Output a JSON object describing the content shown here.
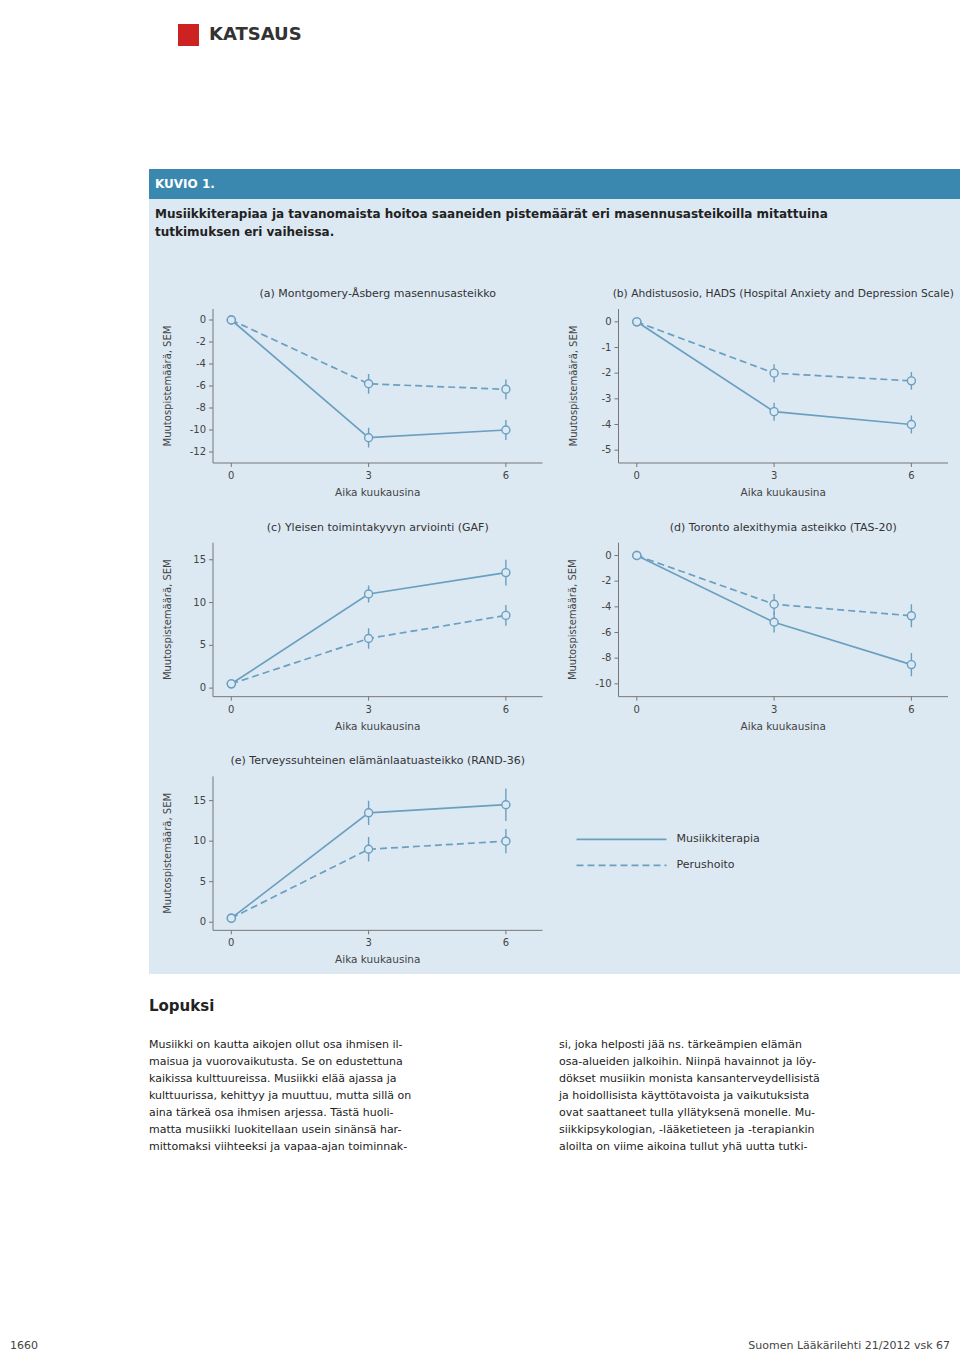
{
  "header": "KATSAUS",
  "title_box": "KUVIO 1.",
  "subtitle": "Musiikkiterapiaa ja tavanomaista hoitoa saaneiden pistemäärät eri masennusasteikoilla mitattuina\ntutkimuksen eri vaiheissa.",
  "chart_data": [
    {
      "type": "line",
      "title": "(a) Montgomery-Åsberg masennusasteikko",
      "x_label": "Aika kuukausina",
      "y_label": "Muutospistemäärä, SEM",
      "x": [
        0,
        3,
        6
      ],
      "xlim": [
        -0.4,
        6.8
      ],
      "xticks": [
        0,
        3,
        6
      ],
      "ylim": [
        -13,
        1
      ],
      "yticks": [
        0,
        -2,
        -4,
        -6,
        -8,
        -10,
        -12
      ],
      "grid": false,
      "series": [
        {
          "name": "Musiikkiterapia",
          "color": "#6a9fc0",
          "line_style": "solid",
          "marker": "circle",
          "values": [
            0,
            -10.7,
            -10.0
          ],
          "errors": [
            0.0,
            0.9,
            0.9
          ]
        },
        {
          "name": "Perushoito",
          "color": "#6a9fc0",
          "line_style": "dashed",
          "marker": "circle",
          "values": [
            0,
            -5.8,
            -6.3
          ],
          "errors": [
            0.0,
            0.9,
            0.9
          ]
        }
      ]
    },
    {
      "type": "line",
      "title": "(b) Ahdistusosio, HADS (Hospital Anxiety and Depression Scale)",
      "x_label": "Aika kuukausina",
      "y_label": "Muutospistemäärä, SEM",
      "x": [
        0,
        3,
        6
      ],
      "xlim": [
        -0.4,
        6.8
      ],
      "xticks": [
        0,
        3,
        6
      ],
      "ylim": [
        -5.5,
        0.5
      ],
      "yticks": [
        0,
        -1,
        -2,
        -3,
        -4,
        -5
      ],
      "grid": false,
      "series": [
        {
          "name": "Musiikkiterapia",
          "color": "#6a9fc0",
          "line_style": "solid",
          "marker": "circle",
          "values": [
            0,
            -3.5,
            -4.0
          ],
          "errors": [
            0.0,
            0.35,
            0.35
          ]
        },
        {
          "name": "Perushoito",
          "color": "#6a9fc0",
          "line_style": "dashed",
          "marker": "circle",
          "values": [
            0,
            -2.0,
            -2.3
          ],
          "errors": [
            0.0,
            0.35,
            0.35
          ]
        }
      ]
    },
    {
      "type": "line",
      "title": "(c) Yleisen toimintakyvyn arviointi (GAF)",
      "x_label": "Aika kuukausina",
      "y_label": "Muutospistemäärä, SEM",
      "x": [
        0,
        3,
        6
      ],
      "xlim": [
        -0.4,
        6.8
      ],
      "xticks": [
        0,
        3,
        6
      ],
      "ylim": [
        -1,
        17
      ],
      "yticks": [
        0,
        5,
        10,
        15
      ],
      "grid": false,
      "series": [
        {
          "name": "Musiikkiterapia",
          "color": "#6a9fc0",
          "line_style": "solid",
          "marker": "circle",
          "values": [
            0.5,
            11.0,
            13.5
          ],
          "errors": [
            0.0,
            1.0,
            1.5
          ]
        },
        {
          "name": "Perushoito",
          "color": "#6a9fc0",
          "line_style": "dashed",
          "marker": "circle",
          "values": [
            0.5,
            5.8,
            8.5
          ],
          "errors": [
            0.0,
            1.2,
            1.2
          ]
        }
      ]
    },
    {
      "type": "line",
      "title": "(d) Toronto alexithymia asteikko (TAS-20)",
      "x_label": "Aika kuukausina",
      "y_label": "Muutospistemäärä, SEM",
      "x": [
        0,
        3,
        6
      ],
      "xlim": [
        -0.4,
        6.8
      ],
      "xticks": [
        0,
        3,
        6
      ],
      "ylim": [
        -11,
        1
      ],
      "yticks": [
        0,
        -2,
        -4,
        -6,
        -8,
        -10
      ],
      "grid": false,
      "series": [
        {
          "name": "Musiikkiterapia",
          "color": "#6a9fc0",
          "line_style": "solid",
          "marker": "circle",
          "values": [
            0,
            -5.2,
            -8.5
          ],
          "errors": [
            0.0,
            0.8,
            0.9
          ]
        },
        {
          "name": "Perushoito",
          "color": "#6a9fc0",
          "line_style": "dashed",
          "marker": "circle",
          "values": [
            0,
            -3.8,
            -4.7
          ],
          "errors": [
            0.0,
            0.8,
            0.9
          ]
        }
      ]
    },
    {
      "type": "line",
      "title": "(e) Terveyssuhteinen elämänlaatuasteikko (RAND-36)",
      "x_label": "Aika kuukausina",
      "y_label": "Muutospistemäärä, SEM",
      "x": [
        0,
        3,
        6
      ],
      "xlim": [
        -0.4,
        6.8
      ],
      "xticks": [
        0,
        3,
        6
      ],
      "ylim": [
        -1,
        18
      ],
      "yticks": [
        0,
        5,
        10,
        15
      ],
      "grid": false,
      "legend": "right",
      "series": [
        {
          "name": "Musiikkiterapia",
          "color": "#6a9fc0",
          "line_style": "solid",
          "marker": "circle",
          "values": [
            0.5,
            13.5,
            14.5
          ],
          "errors": [
            0.0,
            1.5,
            2.0
          ]
        },
        {
          "name": "Perushoito",
          "color": "#6a9fc0",
          "line_style": "dashed",
          "marker": "circle",
          "values": [
            0.5,
            9.0,
            10.0
          ],
          "errors": [
            0.0,
            1.5,
            1.5
          ]
        }
      ]
    }
  ],
  "lopuksi_title": "Lopuksi",
  "lopuksi_left": "Musiikki on kautta aikojen ollut osa ihmisen il-\nmaisua ja vuorovaikutusta. Se on edustettuna\nkaikissa kulttuureissa. Musiikki elää ajassa ja\nkulttuurissa, kehittyy ja muuttuu, mutta sillä on\naina tärkeä osa ihmisen arjessa. Tästä huoli-\nmatta musiikki luokitellaan usein sinänsä har-\nmittomaksi viihteeksi ja vapaa-ajan toiminnak-",
  "lopuksi_right": "si, joka helposti jää ns. tärkeämpien elämän\nosa-alueiden jalkoihin. Niinpä havainnot ja löy-\ndökset musiikin monista kansanterveydellisistä\nja hoidollisista käyttötavoista ja vaikutuksista\novat saattaneet tulla yllätyksenä monelle. Mu-\nsiikkipsykologian, -lääketieteen ja -terapiankin\naloilta on viime aikoina tullut yhä uutta tutki-",
  "footer_left": "1660",
  "footer_right": "Suomen Lääkärilehti 21/2012 vsk 67"
}
